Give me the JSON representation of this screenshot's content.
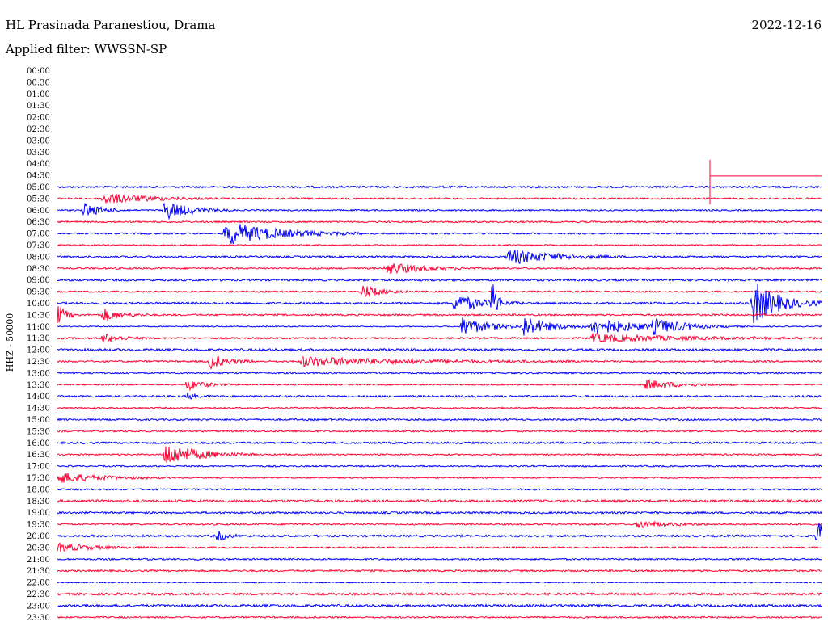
{
  "header": {
    "station": "HL Prasinada Paranestiou, Drama",
    "date": "2022-12-16",
    "filter": "Applied filter: WWSSN-SP"
  },
  "chart_data": {
    "type": "line",
    "title": "HL Prasinada Paranestiou, Drama",
    "ylabel": "HHZ - 50000",
    "y_tick_labels": [
      "00:00",
      "00:30",
      "01:00",
      "01:30",
      "02:00",
      "02:30",
      "03:00",
      "03:30",
      "04:00",
      "04:30",
      "05:00",
      "05:30",
      "06:00",
      "06:30",
      "07:00",
      "07:30",
      "08:00",
      "08:30",
      "09:00",
      "09:30",
      "10:00",
      "10:30",
      "11:00",
      "11:30",
      "12:00",
      "12:30",
      "13:00",
      "13:30",
      "14:00",
      "14:30",
      "15:00",
      "15:30",
      "16:00",
      "16:30",
      "17:00",
      "17:30",
      "18:00",
      "18:30",
      "19:00",
      "19:30",
      "20:00",
      "20:30",
      "21:00",
      "21:30",
      "22:00",
      "22:30",
      "23:00",
      "23:30"
    ],
    "first_trace_row": 10,
    "colors": [
      "#0000ff",
      "#ff0033"
    ],
    "noise_levels": [
      1.2,
      1.0,
      0.9,
      1.0,
      1.0,
      0.8,
      1.1,
      1.0,
      1.3,
      1.0,
      1.3,
      1.1,
      0.7,
      1.1,
      1.4,
      1.1,
      1.0,
      0.8,
      1.2,
      0.9,
      1.1,
      1.0,
      1.2,
      0.9,
      0.9,
      0.8,
      1.0,
      1.5,
      1.2,
      1.0,
      1.3,
      1.0,
      1.0,
      1.1,
      0.7,
      1.4,
      1.5,
      1.0
    ],
    "events": [
      {
        "row": 11,
        "t": 0.06,
        "amp": 7,
        "dur": 0.05
      },
      {
        "row": 12,
        "t": 0.035,
        "amp": 9,
        "dur": 0.02
      },
      {
        "row": 12,
        "t": 0.14,
        "amp": 12,
        "dur": 0.03
      },
      {
        "row": 14,
        "t": 0.22,
        "amp": 15,
        "dur": 0.06
      },
      {
        "row": 16,
        "t": 0.59,
        "amp": 10,
        "dur": 0.05
      },
      {
        "row": 17,
        "t": 0.43,
        "amp": 8,
        "dur": 0.04
      },
      {
        "row": 19,
        "t": 0.4,
        "amp": 9,
        "dur": 0.02
      },
      {
        "row": 20,
        "t": 0.52,
        "amp": 12,
        "dur": 0.03
      },
      {
        "row": 20,
        "t": 0.57,
        "amp": 42,
        "dur": 0.004
      },
      {
        "row": 20,
        "t": 0.91,
        "amp": 28,
        "dur": 0.03
      },
      {
        "row": 21,
        "t": 0.0,
        "amp": 14,
        "dur": 0.01
      },
      {
        "row": 21,
        "t": 0.06,
        "amp": 8,
        "dur": 0.02
      },
      {
        "row": 22,
        "t": 0.53,
        "amp": 12,
        "dur": 0.03
      },
      {
        "row": 22,
        "t": 0.61,
        "amp": 14,
        "dur": 0.03
      },
      {
        "row": 22,
        "t": 0.7,
        "amp": 12,
        "dur": 0.05
      },
      {
        "row": 22,
        "t": 0.78,
        "amp": 8,
        "dur": 0.04
      },
      {
        "row": 23,
        "t": 0.06,
        "amp": 6,
        "dur": 0.02
      },
      {
        "row": 23,
        "t": 0.7,
        "amp": 5,
        "dur": 0.1
      },
      {
        "row": 25,
        "t": 0.2,
        "amp": 9,
        "dur": 0.02
      },
      {
        "row": 25,
        "t": 0.32,
        "amp": 6,
        "dur": 0.12
      },
      {
        "row": 27,
        "t": 0.17,
        "amp": 7,
        "dur": 0.02
      },
      {
        "row": 27,
        "t": 0.77,
        "amp": 6,
        "dur": 0.04
      },
      {
        "row": 28,
        "t": 0.17,
        "amp": 4,
        "dur": 0.01
      },
      {
        "row": 33,
        "t": 0.14,
        "amp": 15,
        "dur": 0.04
      },
      {
        "row": 34,
        "t": 1.0,
        "amp": 4,
        "dur": 0.005
      },
      {
        "row": 35,
        "t": 0.0,
        "amp": 7,
        "dur": 0.05
      },
      {
        "row": 39,
        "t": 0.76,
        "amp": 5,
        "dur": 0.03
      },
      {
        "row": 40,
        "t": 0.21,
        "amp": 7,
        "dur": 0.01
      },
      {
        "row": 40,
        "t": 0.995,
        "amp": 20,
        "dur": 0.01
      },
      {
        "row": 41,
        "t": 0.0,
        "amp": 5,
        "dur": 0.04
      }
    ]
  }
}
